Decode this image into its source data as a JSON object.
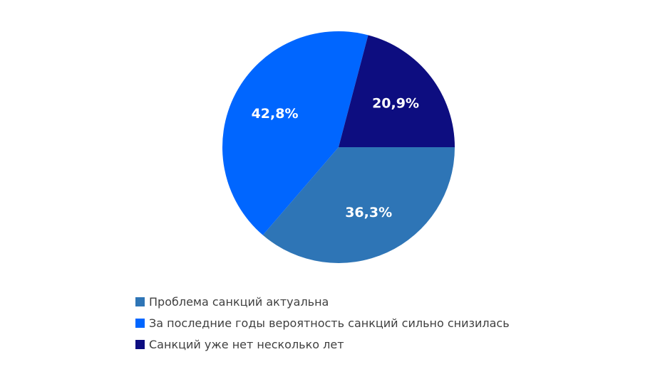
{
  "chart_data": {
    "type": "pie",
    "title": "",
    "slices": [
      {
        "label": "Проблема санкций актуальна",
        "value": 36.3,
        "display": "36,3%",
        "color": "#2e75b6"
      },
      {
        "label": "За последние годы вероятность санкций сильно снизилась",
        "value": 42.8,
        "display": "42,8%",
        "color": "#0066ff"
      },
      {
        "label": "Санкций уже нет несколько лет",
        "value": 20.9,
        "display": "20,9%",
        "color": "#0d0d80"
      }
    ],
    "start_angle_deg": 90,
    "direction": "clockwise",
    "legend_position": "bottom"
  },
  "legend": {
    "items": [
      {
        "label": "Проблема санкций актуальна",
        "color": "#2e75b6"
      },
      {
        "label": "За последние годы вероятность санкций сильно снизилась",
        "color": "#0066ff"
      },
      {
        "label": "Санкций уже нет несколько лет",
        "color": "#0d0d80"
      }
    ]
  }
}
